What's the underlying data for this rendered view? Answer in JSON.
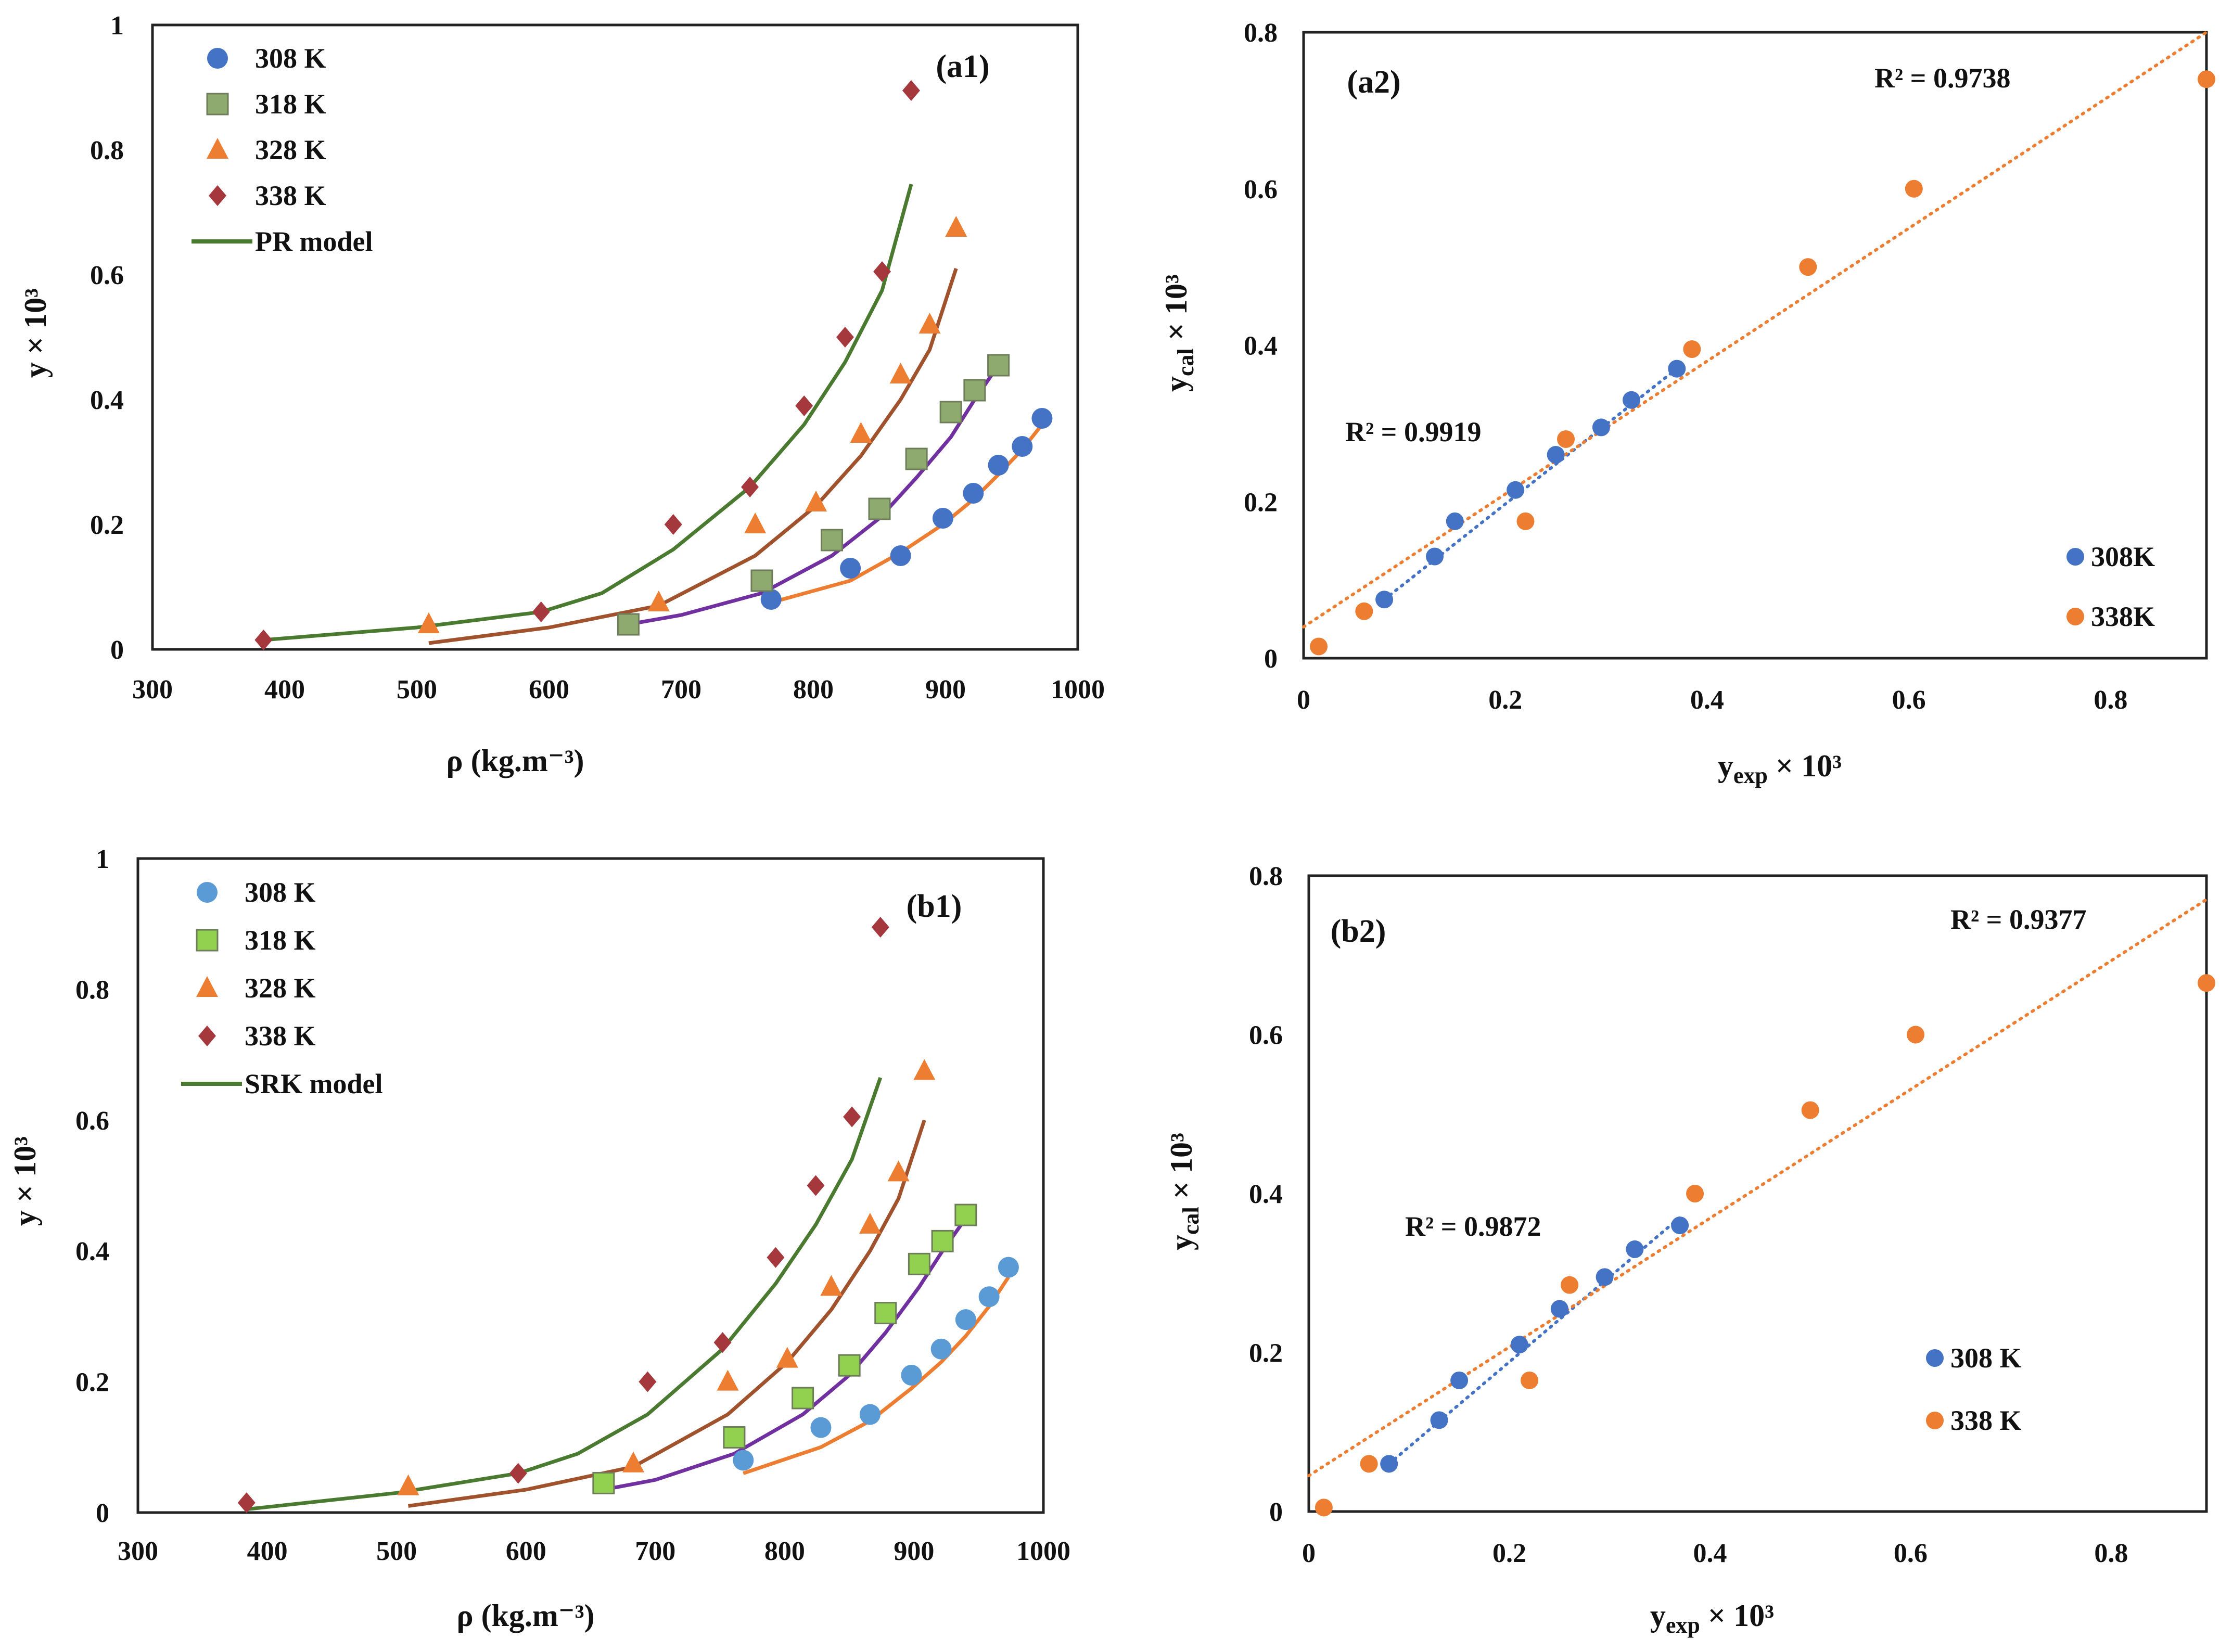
{
  "chart_data": [
    {
      "id": "a1",
      "type": "scatter",
      "label": "(a1)",
      "xlabel": "ρ (kg.m⁻³)",
      "ylabel": "y × 10³",
      "xlim": [
        300,
        1000
      ],
      "ylim": [
        0,
        1
      ],
      "xticks": [
        "300",
        "400",
        "500",
        "600",
        "700",
        "800",
        "900",
        "1000"
      ],
      "yticks": [
        "0",
        "0.2",
        "0.4",
        "0.6",
        "0.8",
        "1"
      ],
      "legend": [
        "308 K",
        "318 K",
        "328 K",
        "338 K",
        "PR model"
      ],
      "model_name": "PR model",
      "series": [
        {
          "name": "308 K",
          "color": "#4472c4",
          "marker": "circle",
          "points": [
            [
              768,
              0.08
            ],
            [
              828,
              0.13
            ],
            [
              866,
              0.15
            ],
            [
              898,
              0.21
            ],
            [
              921,
              0.25
            ],
            [
              940,
              0.295
            ],
            [
              958,
              0.325
            ],
            [
              973,
              0.37
            ]
          ]
        },
        {
          "name": "318 K",
          "color": "#8faa6e",
          "marker": "square",
          "points": [
            [
              660,
              0.04
            ],
            [
              761,
              0.11
            ],
            [
              814,
              0.175
            ],
            [
              850,
              0.225
            ],
            [
              878,
              0.305
            ],
            [
              904,
              0.38
            ],
            [
              922,
              0.415
            ],
            [
              940,
              0.455
            ]
          ]
        },
        {
          "name": "328 K",
          "color": "#ed7d31",
          "marker": "triangle",
          "points": [
            [
              509,
              0.04
            ],
            [
              683,
              0.075
            ],
            [
              756,
              0.2
            ],
            [
              802,
              0.235
            ],
            [
              836,
              0.345
            ],
            [
              866,
              0.44
            ],
            [
              888,
              0.52
            ],
            [
              908,
              0.675
            ]
          ]
        },
        {
          "name": "338 K",
          "color": "#a5383c",
          "marker": "diamond",
          "points": [
            [
              384,
              0.015
            ],
            [
              594,
              0.06
            ],
            [
              694,
              0.2
            ],
            [
              752,
              0.26
            ],
            [
              793,
              0.39
            ],
            [
              824,
              0.5
            ],
            [
              852,
              0.605
            ],
            [
              874,
              0.895
            ]
          ]
        }
      ],
      "model_curves": [
        {
          "name": "308 K",
          "color": "#ed7d31",
          "points": [
            [
              768,
              0.075
            ],
            [
              828,
              0.11
            ],
            [
              866,
              0.155
            ],
            [
              898,
              0.2
            ],
            [
              921,
              0.24
            ],
            [
              940,
              0.28
            ],
            [
              958,
              0.32
            ],
            [
              973,
              0.36
            ]
          ]
        },
        {
          "name": "318 K",
          "color": "#7030a0",
          "points": [
            [
              660,
              0.04
            ],
            [
              700,
              0.055
            ],
            [
              761,
              0.09
            ],
            [
              814,
              0.15
            ],
            [
              850,
              0.21
            ],
            [
              878,
              0.275
            ],
            [
              904,
              0.34
            ],
            [
              922,
              0.4
            ],
            [
              940,
              0.455
            ]
          ]
        },
        {
          "name": "328 K",
          "color": "#a0522d",
          "points": [
            [
              509,
              0.01
            ],
            [
              600,
              0.035
            ],
            [
              683,
              0.07
            ],
            [
              756,
              0.15
            ],
            [
              802,
              0.23
            ],
            [
              836,
              0.31
            ],
            [
              866,
              0.4
            ],
            [
              888,
              0.48
            ],
            [
              908,
              0.61
            ]
          ]
        },
        {
          "name": "338 K",
          "color": "#4a7a30",
          "points": [
            [
              384,
              0.015
            ],
            [
              500,
              0.035
            ],
            [
              594,
              0.06
            ],
            [
              640,
              0.09
            ],
            [
              694,
              0.16
            ],
            [
              752,
              0.26
            ],
            [
              793,
              0.36
            ],
            [
              824,
              0.46
            ],
            [
              852,
              0.575
            ],
            [
              874,
              0.745
            ]
          ]
        }
      ]
    },
    {
      "id": "a2",
      "type": "scatter",
      "label": "(a2)",
      "xlabel_main": "y",
      "xlabel_sub": "exp",
      "xlabel_tail": " × 10³",
      "ylabel_main": "y",
      "ylabel_sub": "cal",
      "ylabel_tail": " × 10³",
      "xlim": [
        0,
        0.895
      ],
      "ylim": [
        0,
        0.8
      ],
      "xticks": [
        "0",
        "0.2",
        "0.4",
        "0.6",
        "0.8"
      ],
      "yticks": [
        "0",
        "0.2",
        "0.4",
        "0.6",
        "0.8"
      ],
      "legend": [
        "308K",
        "338K"
      ],
      "annotations": [
        "R² = 0.9738",
        "R² = 0.9919"
      ],
      "series": [
        {
          "name": "308K",
          "color": "#4472c4",
          "points": [
            [
              0.08,
              0.075
            ],
            [
              0.13,
              0.13
            ],
            [
              0.15,
              0.175
            ],
            [
              0.21,
              0.215
            ],
            [
              0.25,
              0.26
            ],
            [
              0.295,
              0.295
            ],
            [
              0.325,
              0.33
            ],
            [
              0.37,
              0.37
            ]
          ]
        },
        {
          "name": "338K",
          "color": "#ed7d31",
          "points": [
            [
              0.015,
              0.015
            ],
            [
              0.06,
              0.06
            ],
            [
              0.22,
              0.175
            ],
            [
              0.26,
              0.28
            ],
            [
              0.385,
              0.395
            ],
            [
              0.5,
              0.5
            ],
            [
              0.605,
              0.6
            ],
            [
              0.895,
              0.74
            ]
          ]
        }
      ],
      "trendlines": [
        {
          "name": "308K",
          "color": "#4472c4",
          "x": [
            0.08,
            0.37
          ],
          "y": [
            0.075,
            0.37
          ]
        },
        {
          "name": "338K",
          "color": "#ed7d31",
          "x": [
            0,
            0.895
          ],
          "y": [
            0.04,
            0.8
          ]
        }
      ]
    },
    {
      "id": "b1",
      "type": "scatter",
      "label": "(b1)",
      "xlabel": "ρ (kg.m⁻³)",
      "ylabel": "y × 10³",
      "xlim": [
        300,
        1000
      ],
      "ylim": [
        0,
        1
      ],
      "xticks": [
        "300",
        "400",
        "500",
        "600",
        "700",
        "800",
        "900",
        "1000"
      ],
      "yticks": [
        "0",
        "0.2",
        "0.4",
        "0.6",
        "0.8",
        "1"
      ],
      "legend": [
        "308 K",
        "318 K",
        "328 K",
        "338 K",
        "SRK model"
      ],
      "model_name": "SRK model",
      "series": [
        {
          "name": "308 K",
          "color": "#5b9bd5",
          "marker": "circle",
          "points": [
            [
              768,
              0.08
            ],
            [
              828,
              0.13
            ],
            [
              866,
              0.15
            ],
            [
              898,
              0.21
            ],
            [
              921,
              0.25
            ],
            [
              940,
              0.295
            ],
            [
              958,
              0.33
            ],
            [
              973,
              0.375
            ]
          ]
        },
        {
          "name": "318 K",
          "color": "#92d050",
          "marker": "square",
          "points": [
            [
              660,
              0.045
            ],
            [
              761,
              0.115
            ],
            [
              814,
              0.175
            ],
            [
              850,
              0.225
            ],
            [
              878,
              0.305
            ],
            [
              904,
              0.38
            ],
            [
              922,
              0.415
            ],
            [
              940,
              0.455
            ]
          ]
        },
        {
          "name": "328 K",
          "color": "#ed7d31",
          "marker": "triangle",
          "points": [
            [
              509,
              0.04
            ],
            [
              683,
              0.075
            ],
            [
              756,
              0.2
            ],
            [
              802,
              0.235
            ],
            [
              836,
              0.345
            ],
            [
              866,
              0.44
            ],
            [
              888,
              0.52
            ],
            [
              908,
              0.675
            ]
          ]
        },
        {
          "name": "338 K",
          "color": "#a5383c",
          "marker": "diamond",
          "points": [
            [
              384,
              0.015
            ],
            [
              594,
              0.06
            ],
            [
              694,
              0.2
            ],
            [
              752,
              0.26
            ],
            [
              793,
              0.39
            ],
            [
              824,
              0.5
            ],
            [
              852,
              0.605
            ],
            [
              874,
              0.895
            ]
          ]
        }
      ],
      "model_curves": [
        {
          "name": "308 K",
          "color": "#ed7d31",
          "points": [
            [
              768,
              0.06
            ],
            [
              828,
              0.1
            ],
            [
              866,
              0.14
            ],
            [
              898,
              0.19
            ],
            [
              921,
              0.23
            ],
            [
              940,
              0.27
            ],
            [
              958,
              0.315
            ],
            [
              973,
              0.36
            ]
          ]
        },
        {
          "name": "318 K",
          "color": "#7030a0",
          "points": [
            [
              660,
              0.035
            ],
            [
              700,
              0.05
            ],
            [
              761,
              0.09
            ],
            [
              814,
              0.15
            ],
            [
              850,
              0.21
            ],
            [
              878,
              0.275
            ],
            [
              904,
              0.345
            ],
            [
              922,
              0.4
            ],
            [
              940,
              0.45
            ]
          ]
        },
        {
          "name": "328 K",
          "color": "#a0522d",
          "points": [
            [
              509,
              0.01
            ],
            [
              600,
              0.035
            ],
            [
              683,
              0.07
            ],
            [
              756,
              0.15
            ],
            [
              802,
              0.23
            ],
            [
              836,
              0.31
            ],
            [
              866,
              0.4
            ],
            [
              888,
              0.48
            ],
            [
              908,
              0.6
            ]
          ]
        },
        {
          "name": "338 K",
          "color": "#4a7a30",
          "points": [
            [
              384,
              0.005
            ],
            [
              500,
              0.03
            ],
            [
              594,
              0.06
            ],
            [
              640,
              0.09
            ],
            [
              694,
              0.15
            ],
            [
              752,
              0.25
            ],
            [
              793,
              0.35
            ],
            [
              824,
              0.44
            ],
            [
              852,
              0.54
            ],
            [
              874,
              0.665
            ]
          ]
        }
      ]
    },
    {
      "id": "b2",
      "type": "scatter",
      "label": "(b2)",
      "xlabel_main": "y",
      "xlabel_sub": "exp",
      "xlabel_tail": " × 10³",
      "ylabel_main": "y",
      "ylabel_sub": "cal",
      "ylabel_tail": " × 10³",
      "xlim": [
        0,
        0.895
      ],
      "ylim": [
        0,
        0.8
      ],
      "xticks": [
        "0",
        "0.2",
        "0.4",
        "0.6",
        "0.8"
      ],
      "yticks": [
        "0",
        "0.2",
        "0.4",
        "0.6",
        "0.8"
      ],
      "legend": [
        "308 K",
        "338 K"
      ],
      "annotations": [
        "R² = 0.9377",
        "R² = 0.9872"
      ],
      "series": [
        {
          "name": "308 K",
          "color": "#4472c4",
          "points": [
            [
              0.08,
              0.06
            ],
            [
              0.13,
              0.115
            ],
            [
              0.15,
              0.165
            ],
            [
              0.21,
              0.21
            ],
            [
              0.25,
              0.255
            ],
            [
              0.295,
              0.295
            ],
            [
              0.325,
              0.33
            ],
            [
              0.37,
              0.36
            ]
          ]
        },
        {
          "name": "338 K",
          "color": "#ed7d31",
          "points": [
            [
              0.015,
              0.005
            ],
            [
              0.06,
              0.06
            ],
            [
              0.22,
              0.165
            ],
            [
              0.26,
              0.285
            ],
            [
              0.385,
              0.4
            ],
            [
              0.5,
              0.505
            ],
            [
              0.605,
              0.6
            ],
            [
              0.895,
              0.665
            ]
          ]
        }
      ],
      "trendlines": [
        {
          "name": "308 K",
          "color": "#4472c4",
          "x": [
            0.08,
            0.37
          ],
          "y": [
            0.06,
            0.37
          ]
        },
        {
          "name": "338 K",
          "color": "#ed7d31",
          "x": [
            0,
            0.895
          ],
          "y": [
            0.045,
            0.77
          ]
        }
      ]
    }
  ]
}
